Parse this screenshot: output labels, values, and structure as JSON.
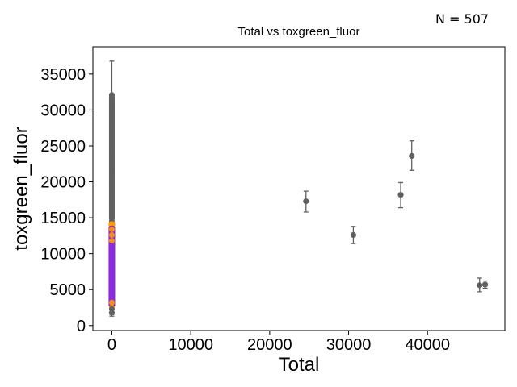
{
  "annotation": "N = 507",
  "chart_data": {
    "type": "scatter",
    "title": "Total vs toxgreen_fluor",
    "xlabel": "Total",
    "ylabel": "toxgreen_fluor",
    "xlim": [
      -2400,
      49800
    ],
    "ylim": [
      -700,
      38800
    ],
    "xticks": [
      0,
      10000,
      20000,
      30000,
      40000
    ],
    "yticks": [
      0,
      5000,
      10000,
      15000,
      20000,
      25000,
      30000,
      35000
    ],
    "grid": false,
    "legend": "none",
    "colors": {
      "points": "#606060",
      "errorbars": "#606060",
      "highlight_orange": "#ff9900",
      "highlight_purple": "#8a2be2"
    },
    "series": [
      {
        "color": "#606060",
        "points": [
          {
            "x": 24600,
            "y": 17300,
            "yerr_low": 15800,
            "yerr_high": 18700
          },
          {
            "x": 30600,
            "y": 12600,
            "yerr_low": 11400,
            "yerr_high": 13800
          },
          {
            "x": 36600,
            "y": 18200,
            "yerr_low": 16400,
            "yerr_high": 19900
          },
          {
            "x": 38000,
            "y": 23600,
            "yerr_low": 21600,
            "yerr_high": 25700
          },
          {
            "x": 46600,
            "y": 5600,
            "yerr_low": 4700,
            "yerr_high": 6600
          },
          {
            "x": 47300,
            "y": 5700,
            "yerr_low": 5200,
            "yerr_high": 6200
          }
        ]
      }
    ],
    "zero_column": {
      "x": 0,
      "gray_y_range": [
        1300,
        36800
      ],
      "gray_dense_y_range": [
        14500,
        32100
      ],
      "gray_max_point": 32100,
      "orange_y_range": [
        2500,
        14500
      ],
      "purple_y_range": [
        2500,
        13900
      ]
    }
  }
}
